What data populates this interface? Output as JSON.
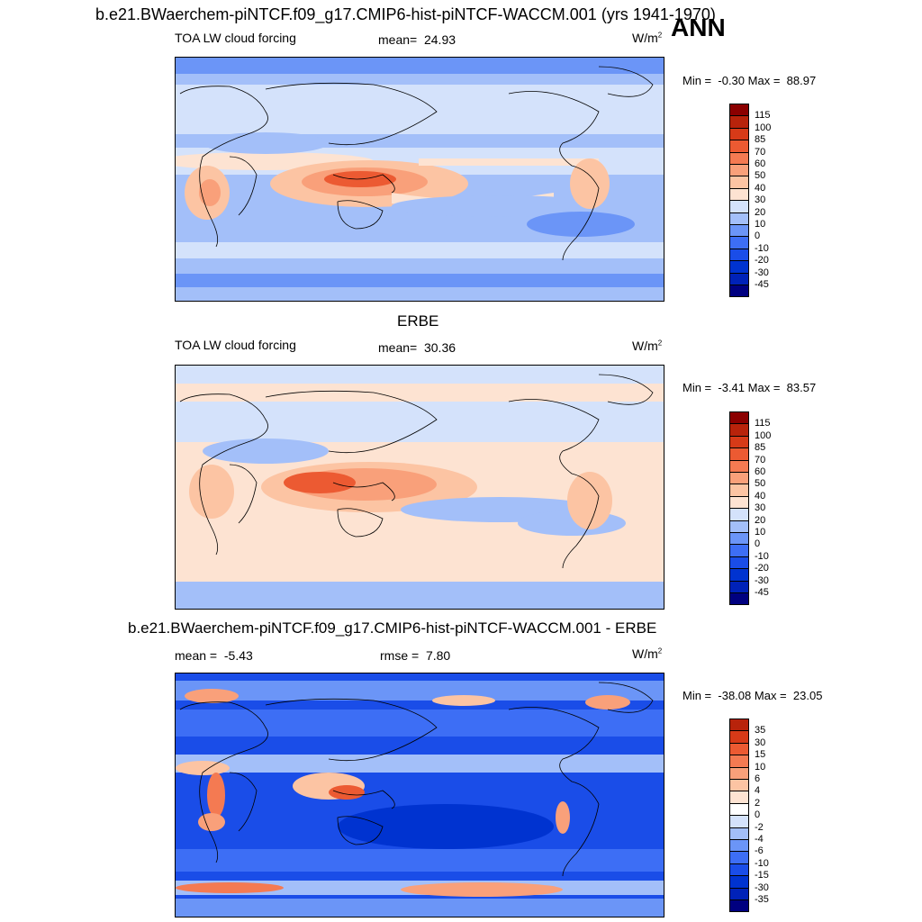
{
  "title": "b.e21.BWaerchem-piNTCF.f09_g17.CMIP6-hist-piNTCF-WACCM.001 (yrs 1941-1970)",
  "season": "ANN",
  "colors": {
    "abs_scale": [
      "#000080",
      "#0022b8",
      "#0033d0",
      "#1a4de8",
      "#3d6ef5",
      "#6b95f7",
      "#a3bff9",
      "#d4e2fb",
      "#fde3d2",
      "#fcc4a3",
      "#f9a07a",
      "#f47a52",
      "#ec5a32",
      "#d73a18",
      "#b8230b",
      "#8b0000"
    ],
    "diff_scale": [
      "#000080",
      "#0022b8",
      "#0033d0",
      "#1a4de8",
      "#3d6ef5",
      "#6b95f7",
      "#a3bff9",
      "#d4e2fb",
      "#ffffff",
      "#fde3d2",
      "#fcc4a3",
      "#f9a07a",
      "#f47a52",
      "#ec5a32",
      "#d73a18",
      "#b8230b",
      "#8b0000"
    ]
  },
  "panels": [
    {
      "variable": "TOA LW cloud forcing",
      "stat_label": "mean=",
      "stat_value": "24.93",
      "units": "W/m",
      "units_exp": "2",
      "min_label": "Min =",
      "min_value": "-0.30",
      "max_label": "Max =",
      "max_value": "88.97",
      "levels": [
        "115",
        "100",
        "85",
        "70",
        "60",
        "50",
        "40",
        "30",
        "20",
        "10",
        "0",
        "-10",
        "-20",
        "-30",
        "-45"
      ]
    },
    {
      "header": "ERBE",
      "variable": "TOA LW cloud forcing",
      "stat_label": "mean=",
      "stat_value": "30.36",
      "units": "W/m",
      "units_exp": "2",
      "min_label": "Min =",
      "min_value": "-3.41",
      "max_label": "Max =",
      "max_value": "83.57",
      "levels": [
        "115",
        "100",
        "85",
        "70",
        "60",
        "50",
        "40",
        "30",
        "20",
        "10",
        "0",
        "-10",
        "-20",
        "-30",
        "-45"
      ]
    },
    {
      "header": "b.e21.BWaerchem-piNTCF.f09_g17.CMIP6-hist-piNTCF-WACCM.001 - ERBE",
      "stat_label": "mean =",
      "stat_value": "-5.43",
      "stat2_label": "rmse =",
      "stat2_value": "7.80",
      "units": "W/m",
      "units_exp": "2",
      "min_label": "Min =",
      "min_value": "-38.08",
      "max_label": "Max =",
      "max_value": "23.05",
      "levels": [
        "35",
        "30",
        "15",
        "10",
        "6",
        "4",
        "2",
        "0",
        "-2",
        "-4",
        "-6",
        "-10",
        "-15",
        "-30",
        "-35"
      ]
    }
  ]
}
